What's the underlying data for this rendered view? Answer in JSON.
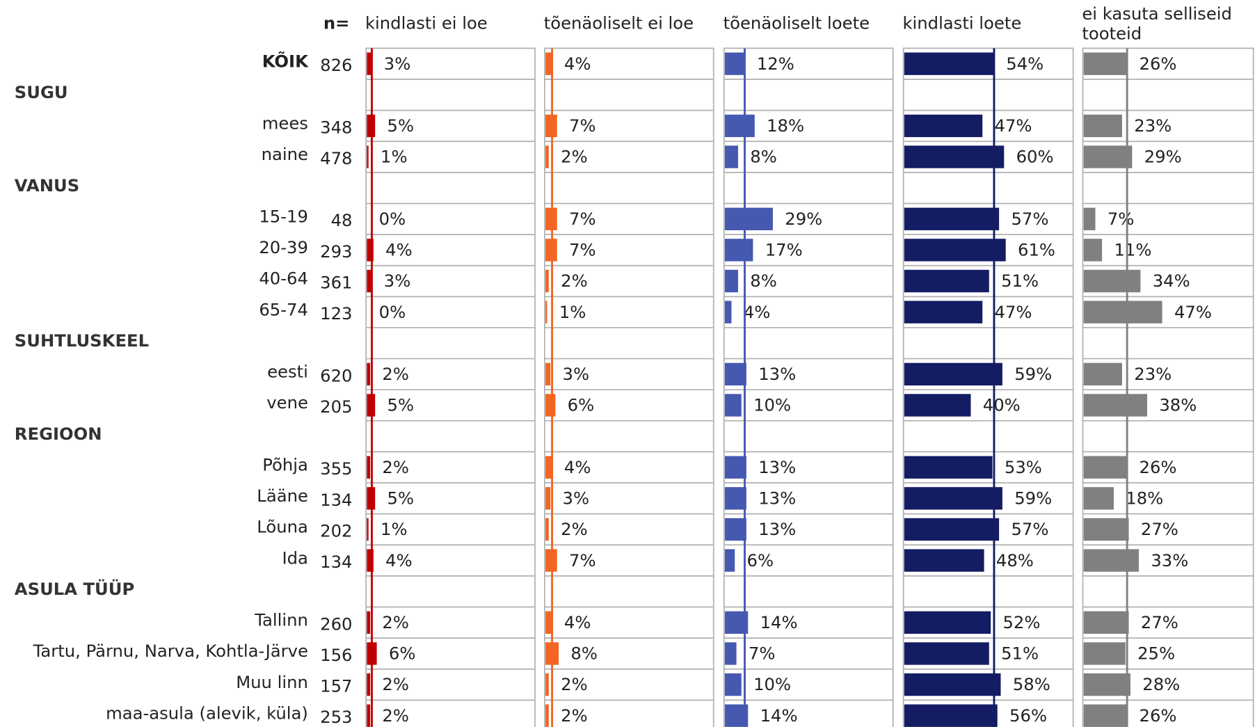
{
  "chart_data": {
    "type": "bar",
    "n_label": "n=",
    "categories": [
      "KÕIK",
      "SUGU",
      "mees",
      "naine",
      "VANUS",
      "15-19",
      "20-39",
      "40-64",
      "65-74",
      "SUHTLUSKEEL",
      "eesti",
      "vene",
      "REGIOON",
      "Põhja",
      "Lääne",
      "Lõuna",
      "Ida",
      "ASULA TÜÜP",
      "Tallinn",
      "Tartu, Pärnu, Narva, Kohtla-Järve",
      "Muu linn",
      "maa-asula (alevik, küla)"
    ],
    "n": [
      826,
      null,
      348,
      478,
      null,
      48,
      293,
      361,
      123,
      null,
      620,
      205,
      null,
      355,
      134,
      202,
      134,
      null,
      260,
      156,
      157,
      253
    ],
    "xlim": [
      0,
      100
    ],
    "series": [
      {
        "name": "kindlasti ei loe",
        "color": "#c00000",
        "values": [
          3,
          null,
          5,
          1,
          null,
          0,
          4,
          3,
          0,
          null,
          2,
          5,
          null,
          2,
          5,
          1,
          4,
          null,
          2,
          6,
          2,
          2
        ],
        "value_labels": [
          "3%",
          null,
          "5%",
          "1%",
          null,
          "0%",
          "4%",
          "3%",
          "0%",
          null,
          "2%",
          "5%",
          null,
          "2%",
          "5%",
          "1%",
          "4%",
          null,
          "2%",
          "6%",
          "2%",
          "2%"
        ],
        "label_colors": [
          null,
          null,
          "#ff0000",
          null,
          null,
          null,
          null,
          null,
          null,
          null,
          null,
          "#ff0000",
          null,
          null,
          "#ff0000",
          null,
          null,
          null,
          null,
          "#ff0000",
          null,
          null
        ]
      },
      {
        "name": "tõenäoliselt ei loe",
        "color": "#f26522",
        "values": [
          4,
          null,
          7,
          2,
          null,
          7,
          7,
          2,
          1,
          null,
          3,
          6,
          null,
          4,
          3,
          2,
          7,
          null,
          4,
          8,
          2,
          2
        ],
        "value_labels": [
          "4%",
          null,
          "7%",
          "2%",
          null,
          "7%",
          "7%",
          "2%",
          "1%",
          null,
          "3%",
          "6%",
          null,
          "4%",
          "3%",
          "2%",
          "7%",
          null,
          "4%",
          "8%",
          "2%",
          "2%"
        ],
        "label_colors": [
          null,
          null,
          null,
          null,
          null,
          null,
          null,
          null,
          null,
          null,
          null,
          null,
          null,
          null,
          null,
          null,
          null,
          null,
          null,
          null,
          null,
          null
        ]
      },
      {
        "name": "tõenäoliselt loete",
        "color": "#4659b0",
        "values": [
          12,
          null,
          18,
          8,
          null,
          29,
          17,
          8,
          4,
          null,
          13,
          10,
          null,
          13,
          13,
          13,
          6,
          null,
          14,
          7,
          10,
          14
        ],
        "value_labels": [
          "12%",
          null,
          "18%",
          "8%",
          null,
          "29%",
          "17%",
          "8%",
          "4%",
          null,
          "13%",
          "10%",
          null,
          "13%",
          "13%",
          "13%",
          "6%",
          null,
          "14%",
          "7%",
          "10%",
          "14%"
        ],
        "label_colors": [
          null,
          null,
          null,
          null,
          null,
          null,
          null,
          null,
          null,
          null,
          null,
          null,
          null,
          null,
          null,
          null,
          null,
          null,
          null,
          null,
          null,
          null
        ]
      },
      {
        "name": "kindlasti loete",
        "color": "#141c64",
        "values": [
          54,
          null,
          47,
          60,
          null,
          57,
          61,
          51,
          47,
          null,
          59,
          40,
          null,
          53,
          59,
          57,
          48,
          null,
          52,
          51,
          58,
          56
        ],
        "value_labels": [
          "54%",
          null,
          "47%",
          "60%",
          null,
          "57%",
          "61%",
          "51%",
          "47%",
          null,
          "59%",
          "40%",
          null,
          "53%",
          "59%",
          "57%",
          "48%",
          null,
          "52%",
          "51%",
          "58%",
          "56%"
        ],
        "label_colors": [
          null,
          null,
          "#0070c0",
          "#ff0000",
          null,
          null,
          "#ff0000",
          null,
          null,
          null,
          "#ff0000",
          "#0070c0",
          null,
          null,
          null,
          null,
          null,
          null,
          null,
          null,
          null,
          null
        ]
      },
      {
        "name": "ei kasuta selliseid tooteid",
        "color": "#808080",
        "values": [
          26,
          null,
          23,
          29,
          null,
          7,
          11,
          34,
          47,
          null,
          23,
          38,
          null,
          26,
          18,
          27,
          33,
          null,
          27,
          25,
          28,
          26
        ],
        "value_labels": [
          "26%",
          null,
          "23%",
          "29%",
          null,
          "7%",
          "11%",
          "34%",
          "47%",
          null,
          "23%",
          "38%",
          null,
          "26%",
          "18%",
          "27%",
          "33%",
          null,
          "27%",
          "25%",
          "28%",
          "26%"
        ],
        "label_colors": [
          null,
          null,
          "#0070c0",
          "#ff0000",
          null,
          "#0070c0",
          "#0070c0",
          "#ff0000",
          "#ff0000",
          null,
          "#0070c0",
          "#ff0000",
          null,
          null,
          "#0070c0",
          null,
          "#ff0000",
          null,
          null,
          null,
          null,
          null
        ]
      }
    ]
  }
}
